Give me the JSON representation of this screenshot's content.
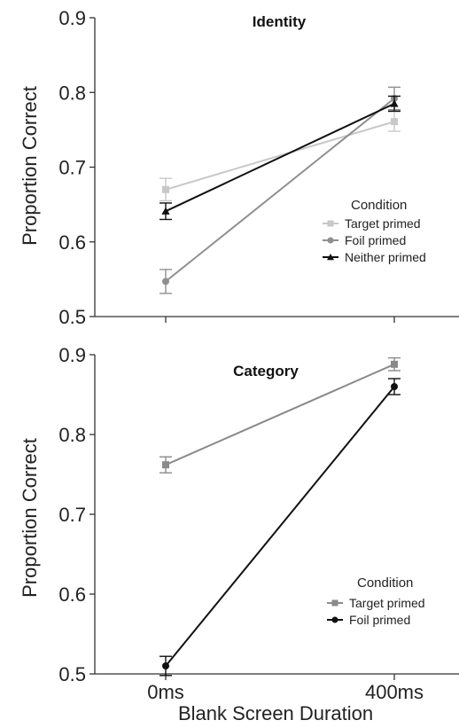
{
  "chart_data": [
    {
      "type": "line",
      "title": "Identity",
      "xlabel": "",
      "ylabel": "Proportion Correct",
      "categories": [
        "0ms",
        "400ms"
      ],
      "ylim": [
        0.5,
        0.9
      ],
      "yticks": [
        "0.5",
        "0.6",
        "0.7",
        "0.8",
        "0.9"
      ],
      "grid": false,
      "legend_title": "Condition",
      "legend_position": "right",
      "series": [
        {
          "name": "Target primed",
          "values": [
            0.67,
            0.761
          ],
          "errors": [
            0.015,
            0.013
          ],
          "color": "#c8c8c8",
          "marker": "square"
        },
        {
          "name": "Foil primed",
          "values": [
            0.547,
            0.792
          ],
          "errors": [
            0.016,
            0.015
          ],
          "color": "#8f8f8f",
          "marker": "circle"
        },
        {
          "name": "Neither primed",
          "values": [
            0.641,
            0.785
          ],
          "errors": [
            0.011,
            0.01
          ],
          "color": "#111111",
          "marker": "triangle"
        }
      ]
    },
    {
      "type": "line",
      "title": "Category",
      "xlabel": "Blank Screen Duration",
      "ylabel": "Proportion Correct",
      "categories": [
        "0ms",
        "400ms"
      ],
      "ylim": [
        0.5,
        0.9
      ],
      "yticks": [
        "0.5",
        "0.6",
        "0.7",
        "0.8",
        "0.9"
      ],
      "grid": false,
      "legend_title": "Condition",
      "legend_position": "bottom-right",
      "series": [
        {
          "name": "Target primed",
          "values": [
            0.762,
            0.888
          ],
          "errors": [
            0.01,
            0.008
          ],
          "color": "#8a8a8a",
          "marker": "square"
        },
        {
          "name": "Foil primed",
          "values": [
            0.51,
            0.86
          ],
          "errors": [
            0.012,
            0.01
          ],
          "color": "#111111",
          "marker": "circle"
        }
      ]
    }
  ]
}
